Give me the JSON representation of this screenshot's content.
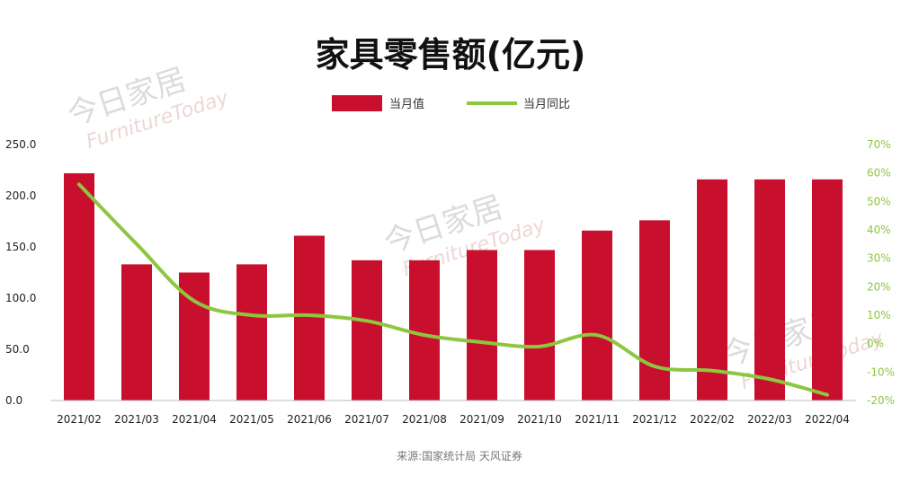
{
  "chart_data": {
    "type": "bar+line",
    "title": "家具零售额(亿元)",
    "categories": [
      "2021/02",
      "2021/03",
      "2021/04",
      "2021/05",
      "2021/06",
      "2021/07",
      "2021/08",
      "2021/09",
      "2021/10",
      "2021/11",
      "2021/12",
      "2022/02",
      "2022/03",
      "2022/04"
    ],
    "series": [
      {
        "name": "当月值",
        "type": "bar",
        "axis": "left",
        "values": [
          222,
          133,
          125,
          133,
          161,
          137,
          137,
          147,
          147,
          166,
          176,
          216,
          216,
          216
        ]
      },
      {
        "name": "当月同比",
        "type": "line",
        "axis": "right",
        "unit": "%",
        "values": [
          56,
          35,
          15,
          10,
          10,
          8,
          3,
          0.5,
          -1,
          3,
          -8,
          -9.5,
          -12.5,
          -18
        ]
      }
    ],
    "y_left": {
      "min": 0,
      "max": 250,
      "ticks": [
        "0.0",
        "50.0",
        "100.0",
        "150.0",
        "200.0",
        "250.0"
      ]
    },
    "y_right": {
      "min": -20,
      "max": 70,
      "ticks": [
        "-20%",
        "-10%",
        "0%",
        "10%",
        "20%",
        "30%",
        "40%",
        "50%",
        "60%",
        "70%"
      ]
    },
    "grid": false,
    "legend_position": "top-center",
    "source": "来源:国家统计局 天风证券",
    "colors": {
      "bar": "#c8102e",
      "line": "#8dc63f",
      "axis_left_text": "#222222",
      "axis_right_text": "#8dc63f",
      "title": "#111111"
    }
  },
  "watermark": {
    "text_cn": "今日家居",
    "text_en": "FurnitureToday"
  }
}
